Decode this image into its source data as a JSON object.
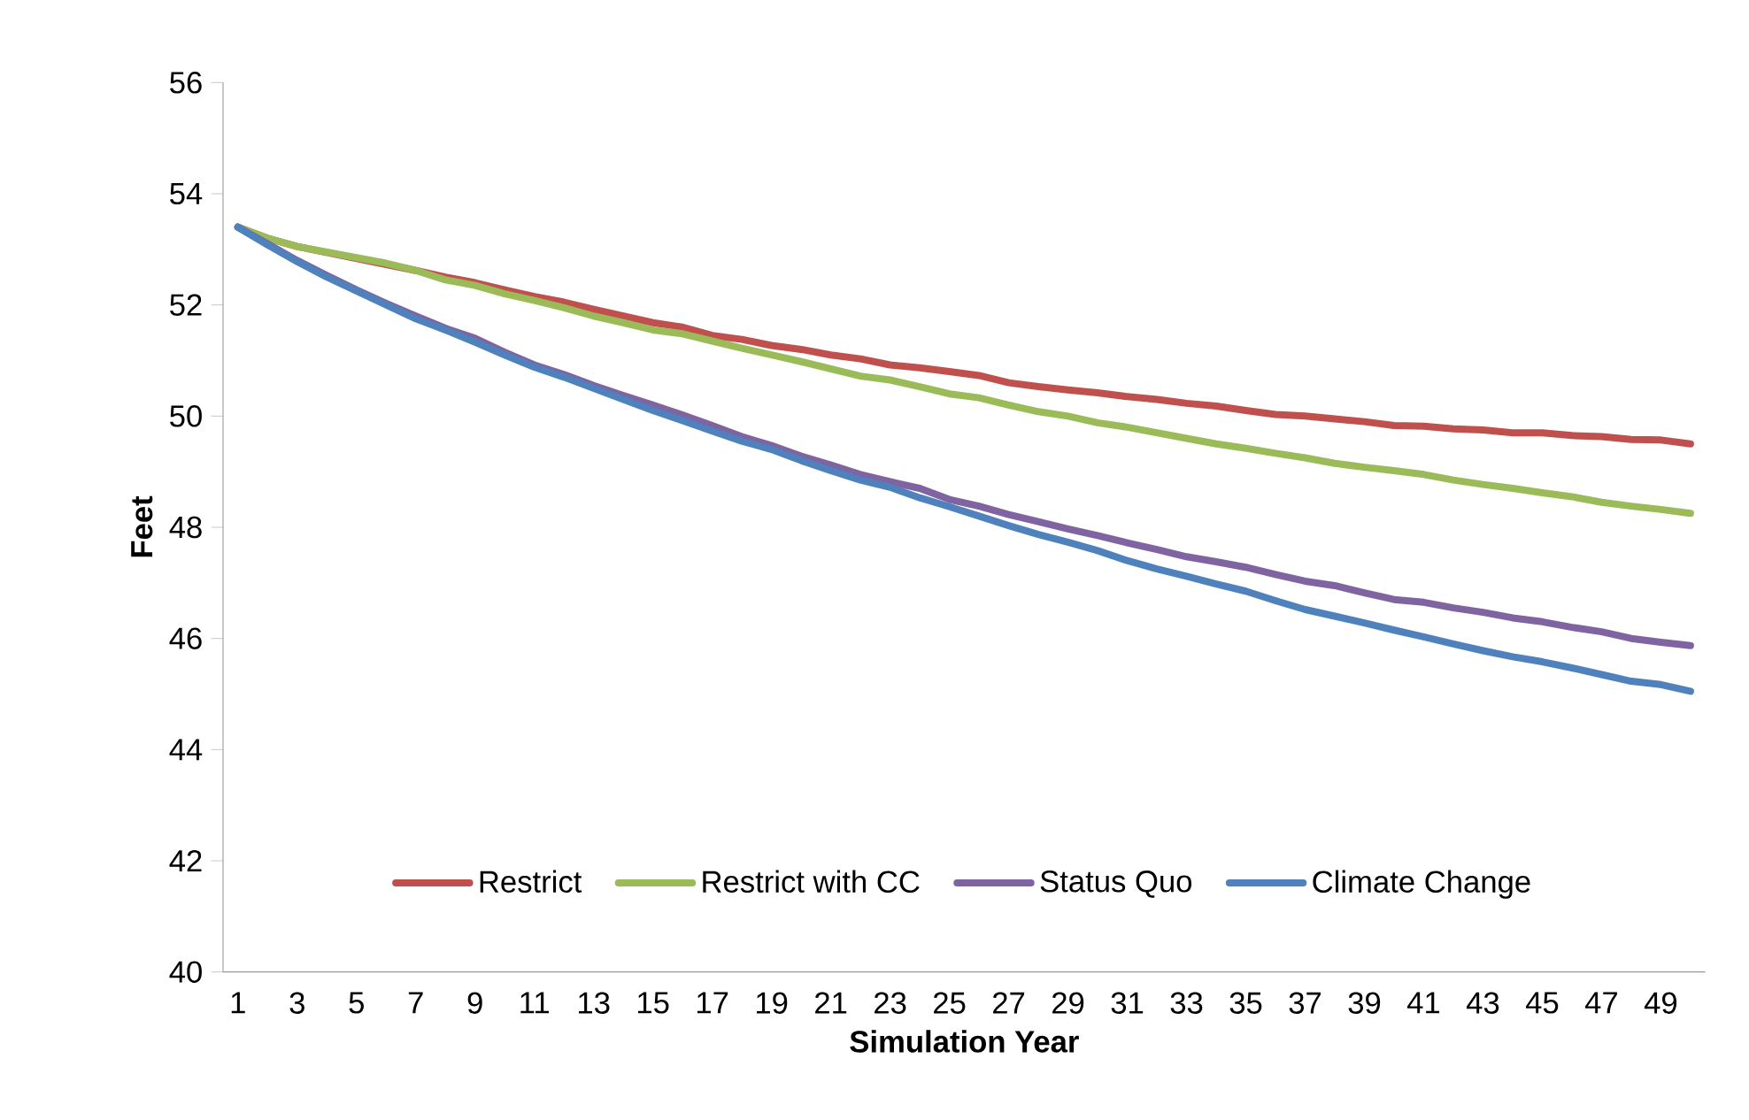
{
  "chart_data": {
    "type": "line",
    "xlabel": "Simulation Year",
    "ylabel": "Feet",
    "categories": [
      "1",
      null,
      "3",
      null,
      "5",
      null,
      "7",
      null,
      "9",
      null,
      "11",
      null,
      "13",
      null,
      "15",
      null,
      "17",
      null,
      "19",
      null,
      "21",
      null,
      "23",
      null,
      "25",
      null,
      "27",
      null,
      "29",
      null,
      "31",
      null,
      "33",
      null,
      "35",
      null,
      "37",
      null,
      "39",
      null,
      "41",
      null,
      "43",
      null,
      "45",
      null,
      "47",
      null,
      "49",
      null
    ],
    "series": [
      {
        "name": "Restrict",
        "color": "#c0504d",
        "values": [
          53.4,
          53.2,
          53.05,
          null,
          null,
          null,
          52.62,
          52.5,
          52.4,
          52.27,
          52.15,
          52.05,
          51.92,
          51.8,
          51.68,
          51.6,
          51.45,
          51.38,
          51.27,
          51.2,
          51.1,
          51.03,
          50.92,
          50.87,
          50.8,
          50.73,
          50.6,
          50.53,
          50.47,
          50.42,
          50.35,
          50.3,
          50.23,
          50.18,
          50.1,
          50.03,
          50.0,
          49.95,
          49.9,
          49.83,
          49.82,
          49.77,
          49.75,
          49.7,
          49.7,
          49.65,
          49.63,
          49.58,
          49.57,
          49.5
        ]
      },
      {
        "name": "Restrict with CC",
        "color": "#9bbb59",
        "values": [
          53.4,
          53.2,
          53.05,
          52.95,
          52.85,
          52.75,
          52.62,
          52.45,
          52.35,
          52.2,
          52.08,
          51.95,
          51.8,
          51.68,
          51.55,
          51.48,
          51.35,
          51.22,
          51.1,
          50.98,
          50.85,
          50.72,
          50.65,
          50.53,
          50.4,
          50.33,
          50.2,
          50.08,
          50.0,
          49.88,
          49.8,
          49.7,
          49.6,
          49.5,
          49.42,
          49.33,
          49.25,
          49.15,
          49.08,
          49.02,
          48.95,
          48.85,
          48.77,
          48.7,
          48.62,
          48.55,
          48.45,
          48.38,
          48.32,
          48.25
        ]
      },
      {
        "name": "Status Quo",
        "color": "#8064a2",
        "values": [
          53.4,
          53.1,
          52.8,
          52.53,
          52.27,
          52.03,
          51.8,
          51.58,
          51.4,
          51.15,
          50.92,
          50.75,
          50.55,
          50.37,
          50.2,
          50.02,
          49.83,
          49.63,
          49.47,
          49.28,
          49.12,
          48.95,
          48.82,
          48.7,
          48.5,
          48.38,
          48.23,
          48.1,
          47.97,
          47.85,
          47.72,
          47.6,
          47.47,
          47.38,
          47.28,
          47.15,
          47.03,
          46.95,
          46.82,
          46.7,
          46.65,
          46.55,
          46.47,
          46.37,
          46.3,
          46.2,
          46.12,
          46.0,
          45.93,
          45.87
        ]
      },
      {
        "name": "Climate Change",
        "color": "#4f81bd",
        "values": [
          53.4,
          53.08,
          52.78,
          52.5,
          52.25,
          52.0,
          51.75,
          51.55,
          51.33,
          51.1,
          50.88,
          50.7,
          50.5,
          50.3,
          50.1,
          49.92,
          49.73,
          49.55,
          49.4,
          49.2,
          49.02,
          48.85,
          48.72,
          48.53,
          48.37,
          48.2,
          48.03,
          47.87,
          47.73,
          47.58,
          47.4,
          47.25,
          47.12,
          46.98,
          46.85,
          46.68,
          46.52,
          46.4,
          46.28,
          46.15,
          46.03,
          45.9,
          45.78,
          45.67,
          45.58,
          45.47,
          45.35,
          45.23,
          45.17,
          45.05
        ]
      }
    ],
    "ylim": [
      40,
      56
    ],
    "yticks": [
      40,
      42,
      44,
      46,
      48,
      50,
      52,
      54,
      56
    ],
    "grid": false,
    "legend": "bottom",
    "marker": "none",
    "line_style": "solid"
  }
}
